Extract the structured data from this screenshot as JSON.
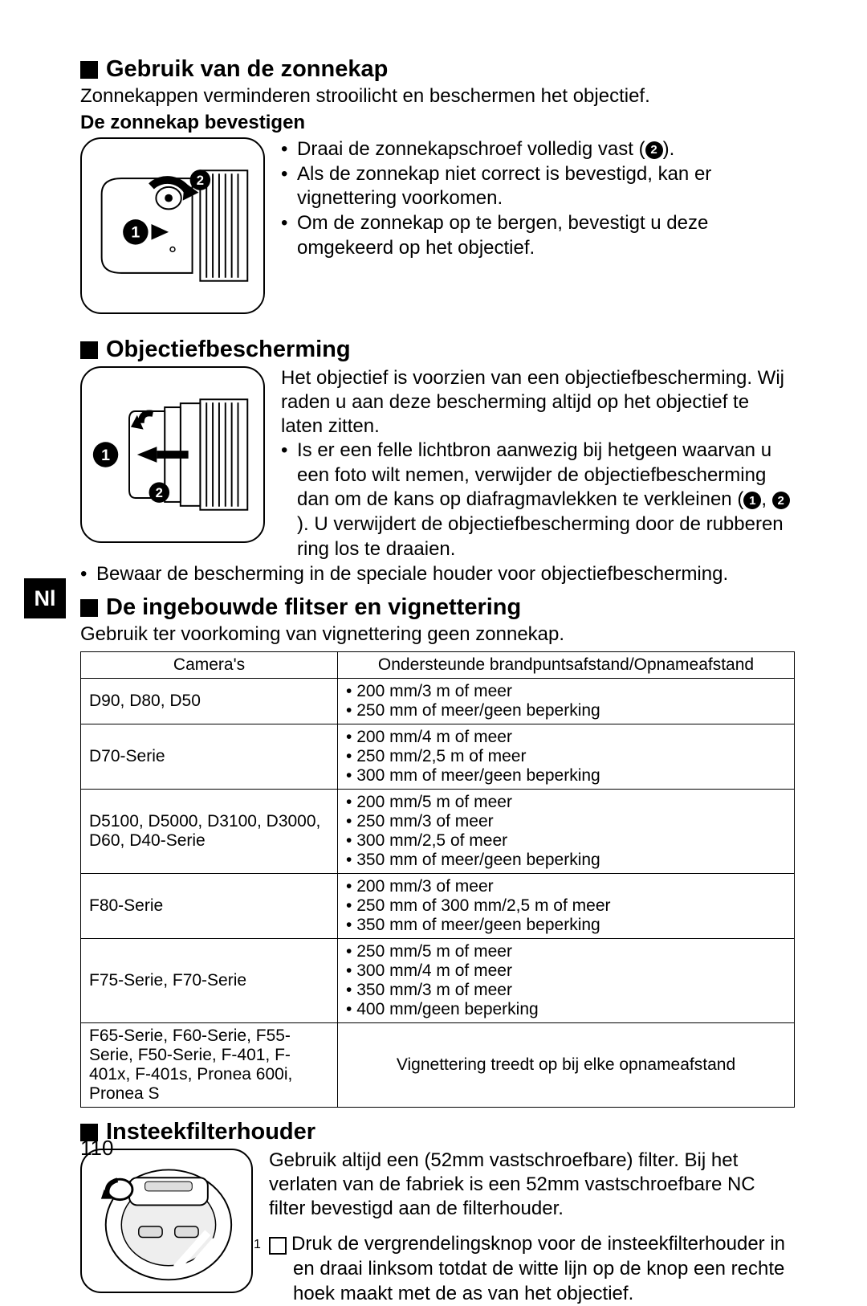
{
  "language_tab": "Nl",
  "page_number": "110",
  "sections": {
    "s1": {
      "heading": "Gebruik van de zonnekap",
      "intro": "Zonnekappen verminderen strooilicht en beschermen het objectief.",
      "sub": "De zonnekap bevestigen",
      "bullets": [
        "Draai de zonnekapschroef volledig vast (",
        "Als de zonnekap niet correct is bevestigd, kan er vignettering voorkomen.",
        "Om de zonnekap op te bergen, bevestigt u deze omgekeerd op het objectief."
      ],
      "b1_suffix": ")."
    },
    "s2": {
      "heading": "Objectiefbescherming",
      "para": "Het objectief is voorzien van een objectiefbescherming. Wij raden u aan deze bescherming altijd op het objectief te laten zitten.",
      "b1a": "Is er een felle lichtbron aanwezig bij hetgeen waarvan u een foto wilt nemen, verwijder de objectiefbescherming dan om de kans op diafragmavlekken te verkleinen (",
      "b1b": "). U verwijdert de objectiefbescherming door de rubberen ring los te draaien.",
      "b2": "Bewaar de bescherming in de speciale houder voor objectiefbescherming."
    },
    "s3": {
      "heading": "De ingebouwde flitser en vignettering",
      "intro": "Gebruik ter voorkoming van vignettering geen zonnekap.",
      "table": {
        "col1": "Camera's",
        "col2": "Ondersteunde brandpuntsafstand/Opnameafstand",
        "rows": [
          {
            "c": "D90, D80, D50",
            "v": [
              "200 mm/3 m of meer",
              "250 mm of meer/geen beperking"
            ]
          },
          {
            "c": "D70-Serie",
            "v": [
              "200 mm/4 m of meer",
              "250 mm/2,5 m of meer",
              "300 mm of meer/geen beperking"
            ]
          },
          {
            "c": "D5100, D5000, D3100, D3000, D60, D40-Serie",
            "v": [
              "200 mm/5 m of meer",
              "250 mm/3 of meer",
              "300 mm/2,5 of meer",
              "350 mm of meer/geen beperking"
            ]
          },
          {
            "c": "F80-Serie",
            "v": [
              "200 mm/3 of meer",
              "250 mm of 300 mm/2,5 m of meer",
              "350 mm of meer/geen beperking"
            ]
          },
          {
            "c": "F75-Serie, F70-Serie",
            "v": [
              "250 mm/5 m of meer",
              "300 mm/4 m of meer",
              "350 mm/3 m of meer",
              "400 mm/geen beperking"
            ]
          },
          {
            "c": "F65-Serie, F60-Serie, F55-Serie, F50-Serie, F-401, F-401x, F-401s, Pronea 600i, Pronea S",
            "v_plain": "Vignettering treedt op bij elke opnameafstand"
          }
        ]
      }
    },
    "s4": {
      "heading": "Insteekfilterhouder",
      "para": "Gebruik altijd een (52mm vastschroefbare) filter. Bij het verlaten van de fabriek is een 52mm vastschroefbare NC filter bevestigd aan de filterhouder.",
      "step1": "Druk de vergrendelingsknop voor de insteekfilterhouder in en draai linksom totdat de witte lijn op de knop een rechte hoek maakt met de as van het objectief."
    }
  }
}
